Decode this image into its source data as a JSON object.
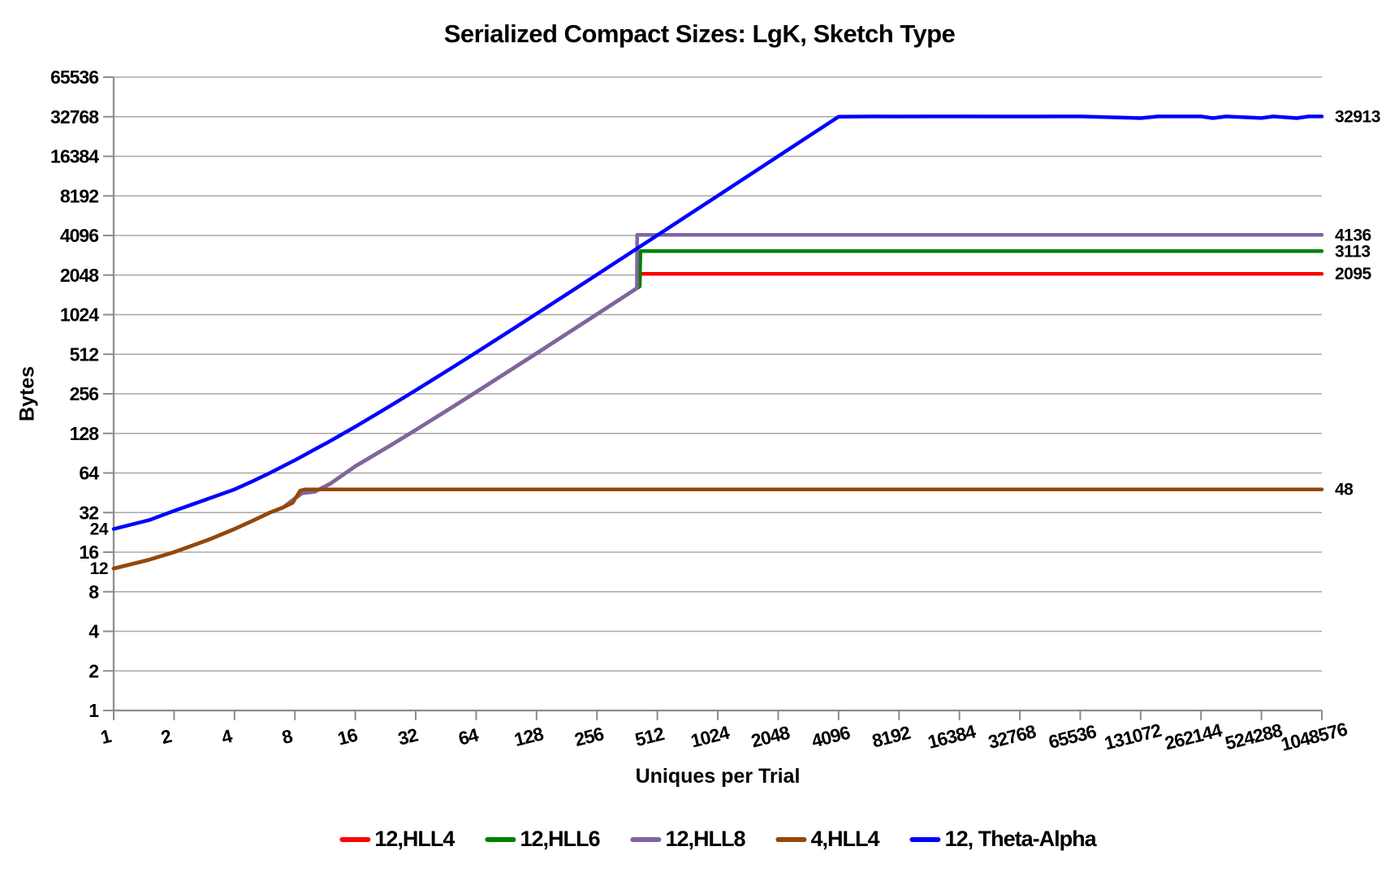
{
  "chart_data": {
    "type": "line",
    "title": "Serialized Compact Sizes: LgK, Sketch Type",
    "xlabel": "Uniques per Trial",
    "ylabel": "Bytes",
    "x_scale": "log2",
    "y_scale": "log2",
    "xlim": [
      1,
      1048576
    ],
    "ylim": [
      1,
      65536
    ],
    "grid": "horizontal",
    "legend_position": "bottom",
    "x_ticks": [
      1,
      2,
      4,
      8,
      16,
      32,
      64,
      128,
      256,
      512,
      1024,
      2048,
      4096,
      8192,
      16384,
      32768,
      65536,
      131072,
      262144,
      524288,
      1048576
    ],
    "y_ticks": [
      65536,
      32768,
      16384,
      8192,
      4096,
      2048,
      1024,
      512,
      256,
      128,
      64,
      32,
      16,
      8,
      4,
      2,
      1
    ],
    "colors": {
      "grid": "#A8A8A8",
      "axis": "#8C8C8C",
      "text": "#000000",
      "background": "#FFFFFF"
    },
    "series": [
      {
        "name": "12,HLL4",
        "color": "#FF0000",
        "final_value": 2095,
        "points": [
          [
            1,
            12
          ],
          [
            1.5,
            14
          ],
          [
            2,
            16
          ],
          [
            3,
            20
          ],
          [
            4,
            24
          ],
          [
            5,
            28
          ],
          [
            6,
            32
          ],
          [
            7,
            35
          ],
          [
            8,
            41
          ],
          [
            8.7,
            45
          ],
          [
            10,
            46
          ],
          [
            12,
            53
          ],
          [
            16,
            72
          ],
          [
            24,
            104
          ],
          [
            32,
            136
          ],
          [
            48,
            200
          ],
          [
            64,
            264
          ],
          [
            96,
            392
          ],
          [
            128,
            520
          ],
          [
            192,
            776
          ],
          [
            256,
            1032
          ],
          [
            320,
            1288
          ],
          [
            400,
            1610
          ],
          [
            418,
            1680
          ],
          [
            420,
            2095
          ],
          [
            1048576,
            2095
          ]
        ]
      },
      {
        "name": "12,HLL6",
        "color": "#008000",
        "final_value": 3113,
        "points": [
          [
            1,
            12
          ],
          [
            1.5,
            14
          ],
          [
            2,
            16
          ],
          [
            3,
            20
          ],
          [
            4,
            24
          ],
          [
            5,
            28
          ],
          [
            6,
            32
          ],
          [
            7,
            35
          ],
          [
            8,
            41
          ],
          [
            8.7,
            45
          ],
          [
            10,
            46
          ],
          [
            12,
            53
          ],
          [
            16,
            72
          ],
          [
            24,
            104
          ],
          [
            32,
            136
          ],
          [
            48,
            200
          ],
          [
            64,
            264
          ],
          [
            96,
            392
          ],
          [
            128,
            520
          ],
          [
            192,
            776
          ],
          [
            256,
            1032
          ],
          [
            320,
            1288
          ],
          [
            400,
            1610
          ],
          [
            418,
            1680
          ],
          [
            422,
            3113
          ],
          [
            1048576,
            3113
          ]
        ]
      },
      {
        "name": "12,HLL8",
        "color": "#8064A2",
        "final_value": 4136,
        "points": [
          [
            1,
            12
          ],
          [
            1.5,
            14
          ],
          [
            2,
            16
          ],
          [
            3,
            20
          ],
          [
            4,
            24
          ],
          [
            5,
            28
          ],
          [
            6,
            32
          ],
          [
            7,
            35
          ],
          [
            8,
            41
          ],
          [
            8.7,
            45
          ],
          [
            10,
            46
          ],
          [
            12,
            53
          ],
          [
            16,
            72
          ],
          [
            24,
            104
          ],
          [
            32,
            136
          ],
          [
            48,
            200
          ],
          [
            64,
            264
          ],
          [
            96,
            392
          ],
          [
            128,
            520
          ],
          [
            192,
            776
          ],
          [
            256,
            1032
          ],
          [
            320,
            1288
          ],
          [
            400,
            1610
          ],
          [
            405,
            1650
          ],
          [
            406,
            4136
          ],
          [
            1048576,
            4136
          ]
        ]
      },
      {
        "name": "4,HLL4",
        "color": "#974706",
        "final_value": 48,
        "points": [
          [
            1,
            12
          ],
          [
            1.5,
            14
          ],
          [
            2,
            16
          ],
          [
            3,
            20
          ],
          [
            4,
            24
          ],
          [
            5,
            28
          ],
          [
            6,
            32
          ],
          [
            7,
            35
          ],
          [
            7.8,
            38
          ],
          [
            8.5,
            47
          ],
          [
            9,
            48
          ],
          [
            1048576,
            48
          ]
        ]
      },
      {
        "name": "12, Theta-Alpha",
        "color": "#0000FF",
        "final_value": 32913,
        "points": [
          [
            1,
            24
          ],
          [
            1.5,
            28
          ],
          [
            2,
            33
          ],
          [
            3,
            41
          ],
          [
            4,
            48
          ],
          [
            5,
            56
          ],
          [
            6,
            64
          ],
          [
            8,
            80
          ],
          [
            12,
            112
          ],
          [
            16,
            144
          ],
          [
            24,
            208
          ],
          [
            32,
            272
          ],
          [
            48,
            400
          ],
          [
            64,
            528
          ],
          [
            96,
            784
          ],
          [
            128,
            1040
          ],
          [
            192,
            1552
          ],
          [
            256,
            2064
          ],
          [
            384,
            3088
          ],
          [
            512,
            4112
          ],
          [
            768,
            6160
          ],
          [
            1024,
            8208
          ],
          [
            1536,
            12304
          ],
          [
            2048,
            16400
          ],
          [
            3072,
            24592
          ],
          [
            4096,
            32784
          ],
          [
            6144,
            32913
          ],
          [
            8192,
            32870
          ],
          [
            12288,
            32913
          ],
          [
            16384,
            32913
          ],
          [
            32768,
            32880
          ],
          [
            49152,
            32913
          ],
          [
            65536,
            32913
          ],
          [
            131072,
            31950
          ],
          [
            160000,
            32913
          ],
          [
            262144,
            32913
          ],
          [
            300000,
            31980
          ],
          [
            350000,
            32913
          ],
          [
            524288,
            32000
          ],
          [
            600000,
            32913
          ],
          [
            786432,
            31950
          ],
          [
            900000,
            32913
          ],
          [
            1048576,
            32913
          ]
        ]
      }
    ],
    "annotations": [
      {
        "text": "32913",
        "x": 1048576,
        "y": 32913,
        "side": "right"
      },
      {
        "text": "4136",
        "x": 1048576,
        "y": 4136,
        "side": "right"
      },
      {
        "text": "3113",
        "x": 1048576,
        "y": 3113,
        "side": "right"
      },
      {
        "text": "2095",
        "x": 1048576,
        "y": 2095,
        "side": "right"
      },
      {
        "text": "48",
        "x": 1048576,
        "y": 48,
        "side": "right"
      },
      {
        "text": "24",
        "x": 1,
        "y": 24,
        "side": "left"
      },
      {
        "text": "12",
        "x": 1,
        "y": 12,
        "side": "left"
      }
    ]
  }
}
